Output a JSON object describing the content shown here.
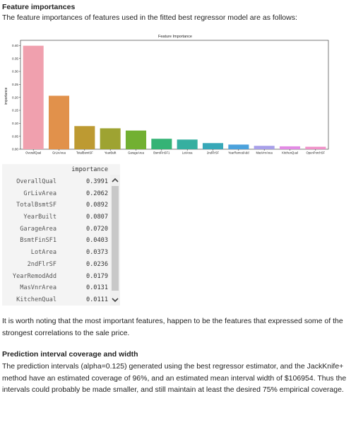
{
  "sections": {
    "fi_heading": "Feature importances",
    "fi_intro": "The feature importances of features used in the fitted best regressor model are as follows:",
    "note": "It is worth noting that the most important features, happen to be the features that expressed some of the strongest correlations to the sale price.",
    "pi_heading": "Prediction interval coverage and width",
    "pi_text": "The prediction intervals (alpha=0.125) generated using the best regressor estimator, and the JackKnife+ method have an estimated coverage of 96%, and an estimated mean interval width of $106954. Thus the intervals could probably be made smaller, and still maintain at least the desired 75% empirical coverage."
  },
  "chart_data": {
    "type": "bar",
    "title": "Feature Importance",
    "xlabel": "",
    "ylabel": "importance",
    "ylim": [
      0,
      0.42
    ],
    "yticks": [
      "0.00",
      "0.05",
      "0.10",
      "0.15",
      "0.20",
      "0.25",
      "0.30",
      "0.35",
      "0.40"
    ],
    "categories": [
      "OverallQual",
      "GrLivArea",
      "TotalBsmtSF",
      "YearBuilt",
      "GarageArea",
      "BsmtFinSF1",
      "LotArea",
      "2ndFlrSF",
      "YearRemodAdd",
      "MasVnrArea",
      "KitchenQual",
      "OpenPorchSF"
    ],
    "values": [
      0.3991,
      0.2062,
      0.0892,
      0.0807,
      0.072,
      0.0403,
      0.0373,
      0.0236,
      0.0179,
      0.0131,
      0.0111,
      0.0095
    ],
    "colors": [
      "#f0a0ae",
      "#e1914b",
      "#bd9a32",
      "#9ea332",
      "#72b032",
      "#35b376",
      "#36afa0",
      "#37a8b8",
      "#4ba2dc",
      "#a8a0e9",
      "#e28be4",
      "#ef91c8"
    ]
  },
  "table": {
    "column": "importance",
    "rows": [
      {
        "feature": "OverallQual",
        "value": "0.3991"
      },
      {
        "feature": "GrLivArea",
        "value": "0.2062"
      },
      {
        "feature": "TotalBsmtSF",
        "value": "0.0892"
      },
      {
        "feature": "YearBuilt",
        "value": "0.0807"
      },
      {
        "feature": "GarageArea",
        "value": "0.0720"
      },
      {
        "feature": "BsmtFinSF1",
        "value": "0.0403"
      },
      {
        "feature": "LotArea",
        "value": "0.0373"
      },
      {
        "feature": "2ndFlrSF",
        "value": "0.0236"
      },
      {
        "feature": "YearRemodAdd",
        "value": "0.0179"
      },
      {
        "feature": "MasVnrArea",
        "value": "0.0131"
      },
      {
        "feature": "KitchenQual",
        "value": "0.0111"
      }
    ]
  },
  "icons": {
    "scroll_up": "chevron-up-icon",
    "scroll_down": "chevron-down-icon"
  }
}
